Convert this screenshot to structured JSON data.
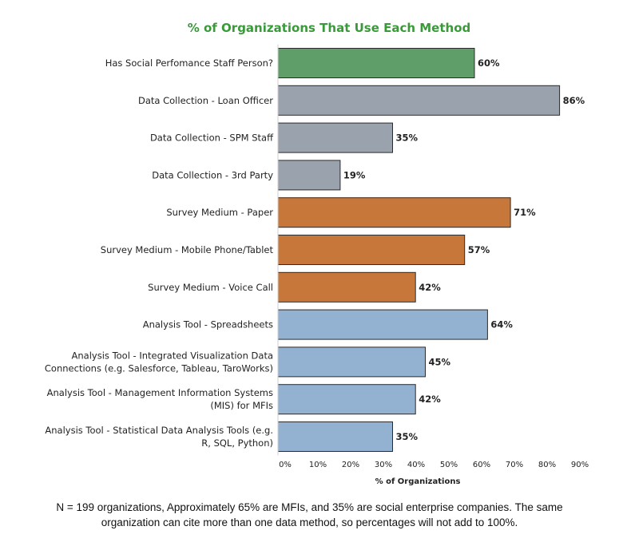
{
  "chart_data": {
    "type": "bar",
    "orientation": "horizontal",
    "title": "% of Organizations That Use Each Method",
    "xlabel": "% of Organizations",
    "ylabel": "",
    "xlim": [
      0,
      90
    ],
    "tick_labels": [
      "0%",
      "10%",
      "20%",
      "30%",
      "40%",
      "50%",
      "60%",
      "70%",
      "80%",
      "90%"
    ],
    "grid": false,
    "categories": [
      [
        "Has Social Perfomance Staff Person?"
      ],
      [
        "Data Collection - Loan Officer"
      ],
      [
        "Data Collection - SPM Staff"
      ],
      [
        "Data Collection - 3rd Party"
      ],
      [
        "Survey Medium - Paper"
      ],
      [
        "Survey Medium - Mobile Phone/Tablet"
      ],
      [
        "Survey Medium - Voice Call"
      ],
      [
        "Analysis Tool - Spreadsheets"
      ],
      [
        "Analysis Tool - Integrated Visualization Data",
        "Connections (e.g. Salesforce, Tableau, TaroWorks)"
      ],
      [
        "Analysis Tool - Management Information Systems",
        "(MIS) for MFIs"
      ],
      [
        "Analysis Tool - Statistical Data Analysis Tools (e.g.",
        "R, SQL, Python)"
      ]
    ],
    "values": [
      60,
      86,
      35,
      19,
      71,
      57,
      42,
      64,
      45,
      42,
      35
    ],
    "value_labels": [
      "60%",
      "86%",
      "35%",
      "19%",
      "71%",
      "57%",
      "42%",
      "64%",
      "45%",
      "42%",
      "35%"
    ],
    "colors": [
      "#5f9e68",
      "#9aa2ad",
      "#9aa2ad",
      "#9aa2ad",
      "#c8773a",
      "#c8773a",
      "#c8773a",
      "#93b1d1",
      "#93b1d1",
      "#93b1d1",
      "#93b1d1"
    ]
  },
  "colors": {
    "title": "#3a9a3a",
    "bar_outline": "#2b2b2b"
  },
  "footnote": {
    "line1": "N = 199 organizations, Approximately 65% are MFIs, and 35% are social enterprise companies. The same",
    "line2": "organization can cite more than one data method, so percentages will not add to 100%."
  }
}
